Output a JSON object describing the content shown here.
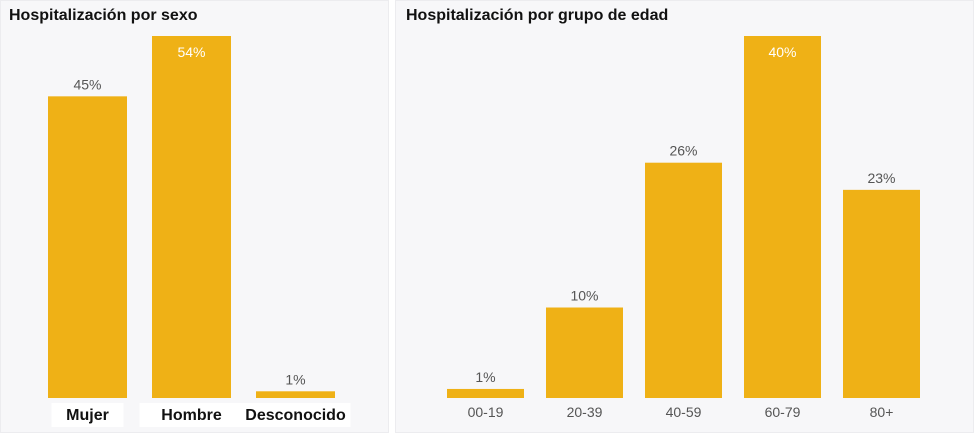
{
  "colors": {
    "bar": "#EFB116",
    "panel_bg": "#F7F7F9"
  },
  "chart_data": [
    {
      "type": "bar",
      "title": "Hospitalización por sexo",
      "categories": [
        "Mujer",
        "Hombre",
        "Desconocido"
      ],
      "values": [
        45,
        54,
        1
      ],
      "labels": [
        "45%",
        "54%",
        "1%"
      ],
      "ylim": [
        0,
        54
      ]
    },
    {
      "type": "bar",
      "title": "Hospitalización por grupo de edad",
      "categories": [
        "00-19",
        "20-39",
        "40-59",
        "60-79",
        "80+"
      ],
      "values": [
        1,
        10,
        26,
        40,
        23
      ],
      "labels": [
        "1%",
        "10%",
        "26%",
        "40%",
        "23%"
      ],
      "ylim": [
        0,
        40
      ]
    }
  ]
}
